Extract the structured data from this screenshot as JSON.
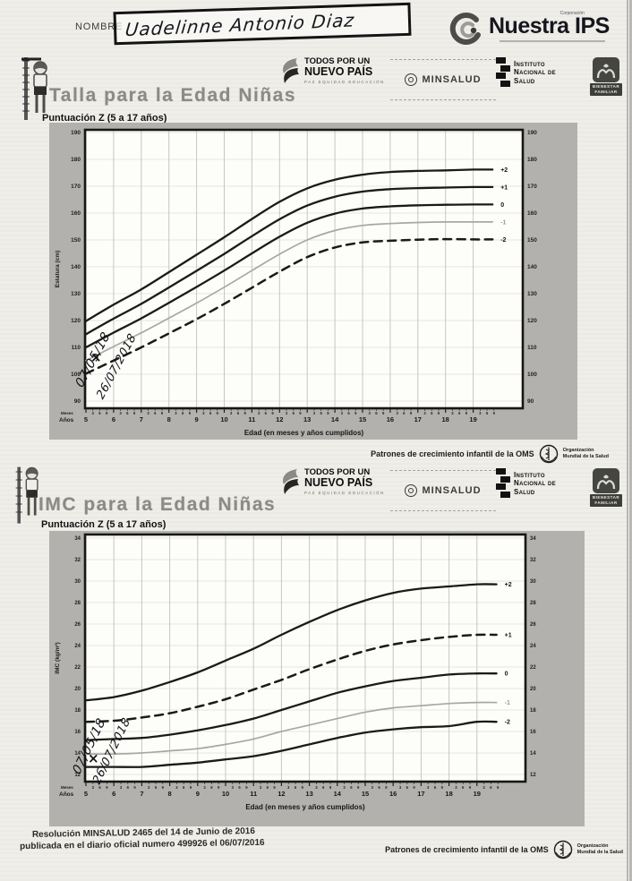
{
  "header": {
    "name_label": "NOMBRE",
    "name_value": "Uadelinne Antonio Diaz"
  },
  "brand": {
    "corporation": "Corporación",
    "name": "Nuestra IPS"
  },
  "logos": {
    "pais_line1": "TODOS POR UN",
    "pais_line2": "NUEVO PAÍS",
    "pais_sub": "PAZ EQUIDAD EDUCACIÓN",
    "minsalud": "MINSALUD",
    "ins_lines": [
      "Instituto",
      "Nacional de",
      "Salud"
    ],
    "icbf_lines": [
      "BIENESTAR",
      "FAMILIAR"
    ]
  },
  "who_caption": "Patrones de crecimiento infantil de la OMS",
  "who_org": [
    "Organización",
    "Mundial de la Salud"
  ],
  "bottom_footer": {
    "line1": "Resolución MINSALUD 2465 del 14 de Junio de 2016",
    "line2": "publicada en el diario oficial numero 499926 el 06/07/2016"
  },
  "colors": {
    "band_gray": "#b2b1ad",
    "plot_bg": "#fdfdfa",
    "curve_dark": "#1a1a18",
    "curve_light": "#a8a7a3",
    "title_gray": "#8b8b83"
  },
  "chart_data": [
    {
      "type": "line",
      "title": "Talla para la Edad Niñas",
      "subtitle": "Puntuación Z (5 a 17 años)",
      "xlabel": "Edad (en meses y años cumplidos)",
      "ylabel": "Estatura (cm)",
      "corner_label": [
        "Meses",
        "Años"
      ],
      "x": [
        5,
        6,
        7,
        8,
        9,
        10,
        11,
        12,
        13,
        14,
        15,
        16,
        17,
        18,
        19
      ],
      "x_minor_labels": [
        "3",
        "6",
        "9"
      ],
      "ylim": [
        90,
        190
      ],
      "ytick_step": 10,
      "grid": true,
      "legend_position": "curve-end-labels",
      "series": [
        {
          "name": "+2",
          "style": "bold",
          "values": [
            119.8,
            125.9,
            131.6,
            138.0,
            144.5,
            151.0,
            157.8,
            164.2,
            169.2,
            172.4,
            174.3,
            175.3,
            175.7,
            175.9,
            176.2
          ]
        },
        {
          "name": "+1",
          "style": "bold",
          "values": [
            114.9,
            120.7,
            126.2,
            132.3,
            138.5,
            144.8,
            151.4,
            157.7,
            162.8,
            166.1,
            168.0,
            168.9,
            169.3,
            169.5,
            169.7
          ]
        },
        {
          "name": "0",
          "style": "bold",
          "values": [
            110.0,
            115.5,
            120.8,
            126.6,
            132.5,
            138.6,
            145.0,
            151.2,
            156.4,
            159.8,
            161.7,
            162.5,
            162.9,
            163.1,
            163.2
          ]
        },
        {
          "name": "-1",
          "style": "light",
          "values": [
            105.1,
            110.3,
            115.4,
            120.9,
            126.5,
            132.4,
            138.6,
            144.7,
            150.0,
            153.5,
            155.4,
            156.1,
            156.5,
            156.7,
            156.7
          ]
        },
        {
          "name": "-2",
          "style": "dashed",
          "values": [
            100.2,
            105.1,
            110.0,
            115.2,
            120.5,
            126.2,
            132.2,
            138.2,
            143.6,
            147.2,
            149.1,
            149.7,
            150.1,
            150.3,
            150.2
          ]
        }
      ],
      "handwritten": [
        "07/05/18",
        "26/07/2018"
      ],
      "footer": "Patrones de crecimiento infantil de la OMS"
    },
    {
      "type": "line",
      "title": "IMC para la Edad Niñas",
      "subtitle": "Puntuación Z (5 a 17 años)",
      "xlabel": "Edad (en meses y años cumplidos)",
      "ylabel": "IMC (kg/m²)",
      "corner_label": [
        "Meses",
        "Años"
      ],
      "x": [
        5,
        6,
        7,
        8,
        9,
        10,
        11,
        12,
        13,
        14,
        15,
        16,
        17,
        18,
        19
      ],
      "x_minor_labels": [
        "3",
        "6",
        "9"
      ],
      "ylim": [
        12,
        34
      ],
      "ytick_step": 2,
      "grid": true,
      "legend_position": "curve-end-labels",
      "series": [
        {
          "name": "+2",
          "style": "bold",
          "values": [
            18.9,
            19.2,
            19.8,
            20.6,
            21.5,
            22.6,
            23.7,
            25.0,
            26.2,
            27.3,
            28.2,
            28.9,
            29.3,
            29.5,
            29.7
          ]
        },
        {
          "name": "+1",
          "style": "dashed",
          "values": [
            16.9,
            17.0,
            17.3,
            17.7,
            18.3,
            19.0,
            19.9,
            20.8,
            21.8,
            22.7,
            23.5,
            24.1,
            24.5,
            24.8,
            25.0
          ]
        },
        {
          "name": "0",
          "style": "bold",
          "values": [
            15.2,
            15.3,
            15.4,
            15.7,
            16.1,
            16.6,
            17.2,
            18.0,
            18.8,
            19.6,
            20.2,
            20.7,
            21.0,
            21.3,
            21.4
          ]
        },
        {
          "name": "-1",
          "style": "light",
          "values": [
            13.9,
            13.9,
            14.0,
            14.2,
            14.4,
            14.8,
            15.3,
            16.0,
            16.6,
            17.2,
            17.8,
            18.2,
            18.4,
            18.6,
            18.7
          ]
        },
        {
          "name": "-2",
          "style": "bold",
          "values": [
            12.7,
            12.7,
            12.7,
            12.9,
            13.1,
            13.4,
            13.7,
            14.2,
            14.8,
            15.4,
            15.9,
            16.2,
            16.4,
            16.5,
            16.9
          ]
        }
      ],
      "handwritten": [
        "07/05/18",
        "26/07/2018"
      ],
      "footer": "Patrones de crecimiento infantil de la OMS"
    }
  ]
}
